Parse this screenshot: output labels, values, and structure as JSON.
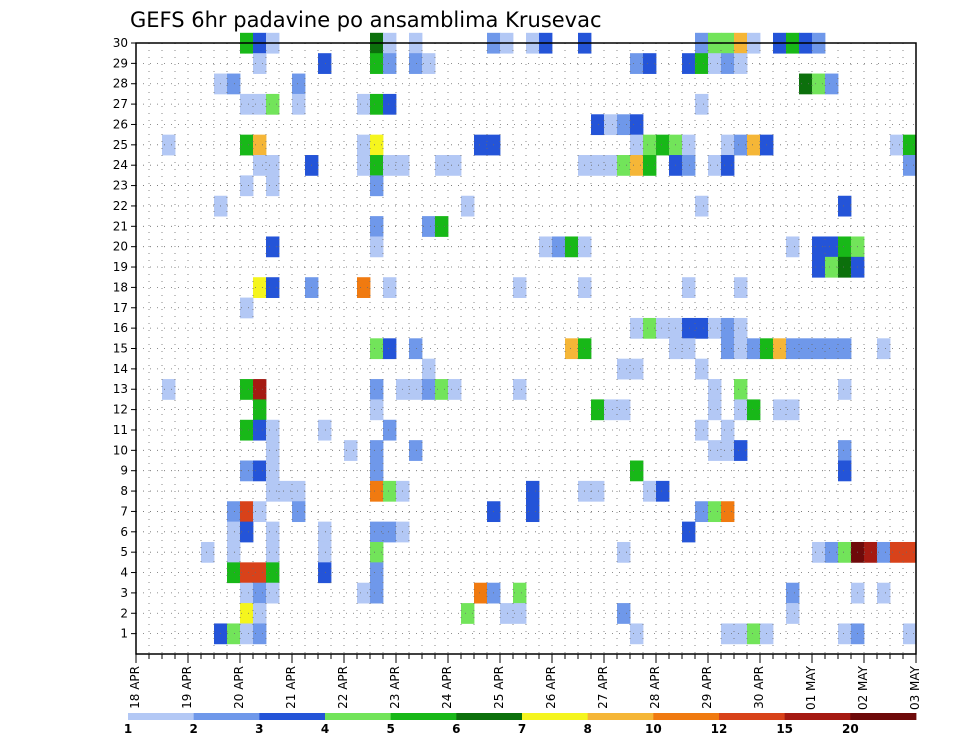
{
  "chart_data": {
    "type": "heatmap",
    "title": "GEFS 6hr padavine po ansamblima Krusevac",
    "xlabel": "",
    "ylabel": "",
    "x_tick_labels": [
      "18 APR",
      "19 APR",
      "20 APR",
      "21 APR",
      "22 APR",
      "23 APR",
      "24 APR",
      "25 APR",
      "26 APR",
      "27 APR",
      "28 APR",
      "29 APR",
      "30 APR",
      "01 MAY",
      "02 MAY",
      "03 MAY"
    ],
    "y_tick_labels": [
      "1",
      "2",
      "3",
      "4",
      "5",
      "6",
      "7",
      "8",
      "9",
      "10",
      "11",
      "12",
      "13",
      "14",
      "15",
      "16",
      "17",
      "18",
      "19",
      "20",
      "21",
      "22",
      "23",
      "24",
      "25",
      "26",
      "27",
      "28",
      "29",
      "30"
    ],
    "xlim": [
      0,
      60
    ],
    "ylim": [
      0,
      30
    ],
    "grid": true,
    "legend": "colorbar-bottom",
    "colorbar": {
      "levels": [
        1,
        2,
        3,
        4,
        5,
        6,
        7,
        8,
        10,
        12,
        15,
        20
      ],
      "colors": [
        "#b3c8f5",
        "#6f98ea",
        "#2454d8",
        "#72e45a",
        "#18b818",
        "#0c700c",
        "#f5f51e",
        "#f5b637",
        "#f07a10",
        "#d8421a",
        "#a51a12",
        "#6e0a0a"
      ]
    },
    "cells": [
      [
        8,
        30,
        4
      ],
      [
        9,
        30,
        2
      ],
      [
        10,
        30,
        0
      ],
      [
        18,
        30,
        5
      ],
      [
        19,
        30,
        0
      ],
      [
        21,
        30,
        0
      ],
      [
        27,
        30,
        1
      ],
      [
        28,
        30,
        0
      ],
      [
        30,
        30,
        0
      ],
      [
        31,
        30,
        2
      ],
      [
        34,
        30,
        2
      ],
      [
        43,
        30,
        1
      ],
      [
        44,
        30,
        3
      ],
      [
        45,
        30,
        3
      ],
      [
        46,
        30,
        7
      ],
      [
        47,
        30,
        0
      ],
      [
        49,
        30,
        2
      ],
      [
        50,
        30,
        4
      ],
      [
        51,
        30,
        2
      ],
      [
        52,
        30,
        1
      ],
      [
        9,
        29,
        0
      ],
      [
        14,
        29,
        2
      ],
      [
        18,
        29,
        4
      ],
      [
        19,
        29,
        1
      ],
      [
        21,
        29,
        1
      ],
      [
        22,
        29,
        0
      ],
      [
        38,
        29,
        1
      ],
      [
        39,
        29,
        2
      ],
      [
        42,
        29,
        2
      ],
      [
        43,
        29,
        4
      ],
      [
        44,
        29,
        0
      ],
      [
        45,
        29,
        1
      ],
      [
        46,
        29,
        0
      ],
      [
        6,
        28,
        0
      ],
      [
        7,
        28,
        1
      ],
      [
        12,
        28,
        1
      ],
      [
        51,
        28,
        5
      ],
      [
        52,
        28,
        3
      ],
      [
        53,
        28,
        1
      ],
      [
        8,
        27,
        0
      ],
      [
        9,
        27,
        0
      ],
      [
        10,
        27,
        3
      ],
      [
        12,
        27,
        0
      ],
      [
        17,
        27,
        0
      ],
      [
        18,
        27,
        4
      ],
      [
        19,
        27,
        2
      ],
      [
        43,
        27,
        0
      ],
      [
        35,
        26,
        2
      ],
      [
        36,
        26,
        0
      ],
      [
        37,
        26,
        1
      ],
      [
        38,
        26,
        2
      ],
      [
        2,
        25,
        0
      ],
      [
        8,
        25,
        4
      ],
      [
        9,
        25,
        7
      ],
      [
        17,
        25,
        0
      ],
      [
        18,
        25,
        6
      ],
      [
        26,
        25,
        2
      ],
      [
        27,
        25,
        2
      ],
      [
        38,
        25,
        0
      ],
      [
        39,
        25,
        3
      ],
      [
        40,
        25,
        4
      ],
      [
        41,
        25,
        3
      ],
      [
        42,
        25,
        0
      ],
      [
        45,
        25,
        0
      ],
      [
        46,
        25,
        1
      ],
      [
        47,
        25,
        7
      ],
      [
        48,
        25,
        2
      ],
      [
        58,
        25,
        0
      ],
      [
        59,
        25,
        4
      ],
      [
        9,
        24,
        0
      ],
      [
        10,
        24,
        0
      ],
      [
        13,
        24,
        2
      ],
      [
        17,
        24,
        0
      ],
      [
        18,
        24,
        4
      ],
      [
        19,
        24,
        0
      ],
      [
        20,
        24,
        0
      ],
      [
        23,
        24,
        0
      ],
      [
        24,
        24,
        0
      ],
      [
        34,
        24,
        0
      ],
      [
        35,
        24,
        0
      ],
      [
        36,
        24,
        0
      ],
      [
        37,
        24,
        3
      ],
      [
        38,
        24,
        7
      ],
      [
        39,
        24,
        4
      ],
      [
        41,
        24,
        2
      ],
      [
        42,
        24,
        1
      ],
      [
        44,
        24,
        0
      ],
      [
        45,
        24,
        2
      ],
      [
        59,
        24,
        1
      ],
      [
        8,
        23,
        0
      ],
      [
        10,
        23,
        0
      ],
      [
        18,
        23,
        1
      ],
      [
        6,
        22,
        0
      ],
      [
        25,
        22,
        0
      ],
      [
        43,
        22,
        0
      ],
      [
        54,
        22,
        2
      ],
      [
        18,
        21,
        1
      ],
      [
        22,
        21,
        1
      ],
      [
        23,
        21,
        4
      ],
      [
        10,
        20,
        2
      ],
      [
        18,
        20,
        0
      ],
      [
        31,
        20,
        0
      ],
      [
        32,
        20,
        1
      ],
      [
        33,
        20,
        4
      ],
      [
        34,
        20,
        0
      ],
      [
        50,
        20,
        0
      ],
      [
        52,
        20,
        2
      ],
      [
        53,
        20,
        2
      ],
      [
        54,
        20,
        4
      ],
      [
        55,
        20,
        3
      ],
      [
        52,
        19,
        2
      ],
      [
        53,
        19,
        3
      ],
      [
        54,
        19,
        5
      ],
      [
        55,
        19,
        2
      ],
      [
        9,
        18,
        6
      ],
      [
        10,
        18,
        2
      ],
      [
        13,
        18,
        1
      ],
      [
        17,
        18,
        8
      ],
      [
        19,
        18,
        0
      ],
      [
        29,
        18,
        0
      ],
      [
        34,
        18,
        0
      ],
      [
        42,
        18,
        0
      ],
      [
        46,
        18,
        0
      ],
      [
        8,
        17,
        0
      ],
      [
        38,
        16,
        0
      ],
      [
        39,
        16,
        3
      ],
      [
        40,
        16,
        0
      ],
      [
        41,
        16,
        0
      ],
      [
        42,
        16,
        2
      ],
      [
        43,
        16,
        2
      ],
      [
        44,
        16,
        0
      ],
      [
        45,
        16,
        1
      ],
      [
        46,
        16,
        0
      ],
      [
        18,
        15,
        3
      ],
      [
        19,
        15,
        2
      ],
      [
        21,
        15,
        1
      ],
      [
        33,
        15,
        7
      ],
      [
        34,
        15,
        4
      ],
      [
        41,
        15,
        0
      ],
      [
        42,
        15,
        0
      ],
      [
        45,
        15,
        1
      ],
      [
        46,
        15,
        0
      ],
      [
        47,
        15,
        1
      ],
      [
        48,
        15,
        4
      ],
      [
        49,
        15,
        7
      ],
      [
        50,
        15,
        1
      ],
      [
        51,
        15,
        1
      ],
      [
        52,
        15,
        1
      ],
      [
        53,
        15,
        1
      ],
      [
        54,
        15,
        1
      ],
      [
        57,
        15,
        0
      ],
      [
        22,
        14,
        0
      ],
      [
        37,
        14,
        0
      ],
      [
        38,
        14,
        0
      ],
      [
        43,
        14,
        0
      ],
      [
        2,
        13,
        0
      ],
      [
        8,
        13,
        4
      ],
      [
        9,
        13,
        10
      ],
      [
        18,
        13,
        1
      ],
      [
        20,
        13,
        0
      ],
      [
        21,
        13,
        0
      ],
      [
        22,
        13,
        1
      ],
      [
        23,
        13,
        3
      ],
      [
        24,
        13,
        0
      ],
      [
        29,
        13,
        0
      ],
      [
        44,
        13,
        0
      ],
      [
        46,
        13,
        3
      ],
      [
        54,
        13,
        0
      ],
      [
        9,
        12,
        4
      ],
      [
        18,
        12,
        0
      ],
      [
        35,
        12,
        4
      ],
      [
        36,
        12,
        0
      ],
      [
        37,
        12,
        0
      ],
      [
        44,
        12,
        0
      ],
      [
        46,
        12,
        0
      ],
      [
        47,
        12,
        4
      ],
      [
        49,
        12,
        0
      ],
      [
        50,
        12,
        0
      ],
      [
        8,
        11,
        4
      ],
      [
        9,
        11,
        2
      ],
      [
        10,
        11,
        0
      ],
      [
        14,
        11,
        0
      ],
      [
        19,
        11,
        1
      ],
      [
        43,
        11,
        0
      ],
      [
        45,
        11,
        0
      ],
      [
        10,
        10,
        0
      ],
      [
        16,
        10,
        0
      ],
      [
        18,
        10,
        1
      ],
      [
        21,
        10,
        1
      ],
      [
        44,
        10,
        0
      ],
      [
        45,
        10,
        0
      ],
      [
        46,
        10,
        2
      ],
      [
        54,
        10,
        1
      ],
      [
        8,
        9,
        1
      ],
      [
        9,
        9,
        2
      ],
      [
        10,
        9,
        0
      ],
      [
        18,
        9,
        1
      ],
      [
        38,
        9,
        4
      ],
      [
        54,
        9,
        2
      ],
      [
        10,
        8,
        0
      ],
      [
        11,
        8,
        0
      ],
      [
        12,
        8,
        0
      ],
      [
        18,
        8,
        8
      ],
      [
        19,
        8,
        3
      ],
      [
        20,
        8,
        0
      ],
      [
        30,
        8,
        2
      ],
      [
        34,
        8,
        0
      ],
      [
        35,
        8,
        0
      ],
      [
        39,
        8,
        0
      ],
      [
        40,
        8,
        2
      ],
      [
        7,
        7,
        1
      ],
      [
        8,
        7,
        9
      ],
      [
        9,
        7,
        0
      ],
      [
        12,
        7,
        1
      ],
      [
        27,
        7,
        2
      ],
      [
        30,
        7,
        2
      ],
      [
        43,
        7,
        1
      ],
      [
        44,
        7,
        3
      ],
      [
        45,
        7,
        8
      ],
      [
        7,
        6,
        0
      ],
      [
        8,
        6,
        2
      ],
      [
        10,
        6,
        0
      ],
      [
        14,
        6,
        0
      ],
      [
        18,
        6,
        1
      ],
      [
        19,
        6,
        1
      ],
      [
        20,
        6,
        0
      ],
      [
        42,
        6,
        2
      ],
      [
        5,
        5,
        0
      ],
      [
        7,
        5,
        0
      ],
      [
        10,
        5,
        0
      ],
      [
        14,
        5,
        0
      ],
      [
        18,
        5,
        3
      ],
      [
        37,
        5,
        0
      ],
      [
        52,
        5,
        0
      ],
      [
        53,
        5,
        1
      ],
      [
        54,
        5,
        3
      ],
      [
        55,
        5,
        11
      ],
      [
        56,
        5,
        10
      ],
      [
        57,
        5,
        1
      ],
      [
        58,
        5,
        9
      ],
      [
        59,
        5,
        9
      ],
      [
        7,
        4,
        4
      ],
      [
        8,
        4,
        9
      ],
      [
        9,
        4,
        9
      ],
      [
        10,
        4,
        4
      ],
      [
        14,
        4,
        2
      ],
      [
        18,
        4,
        1
      ],
      [
        8,
        3,
        0
      ],
      [
        9,
        3,
        1
      ],
      [
        10,
        3,
        0
      ],
      [
        17,
        3,
        0
      ],
      [
        18,
        3,
        1
      ],
      [
        26,
        3,
        8
      ],
      [
        27,
        3,
        1
      ],
      [
        29,
        3,
        3
      ],
      [
        50,
        3,
        1
      ],
      [
        55,
        3,
        0
      ],
      [
        57,
        3,
        0
      ],
      [
        8,
        2,
        6
      ],
      [
        9,
        2,
        0
      ],
      [
        25,
        2,
        3
      ],
      [
        28,
        2,
        0
      ],
      [
        29,
        2,
        0
      ],
      [
        37,
        2,
        1
      ],
      [
        50,
        2,
        0
      ],
      [
        6,
        1,
        2
      ],
      [
        7,
        1,
        3
      ],
      [
        8,
        1,
        0
      ],
      [
        9,
        1,
        1
      ],
      [
        38,
        1,
        0
      ],
      [
        45,
        1,
        0
      ],
      [
        46,
        1,
        0
      ],
      [
        47,
        1,
        3
      ],
      [
        48,
        1,
        0
      ],
      [
        54,
        1,
        0
      ],
      [
        55,
        1,
        1
      ],
      [
        59,
        1,
        0
      ]
    ]
  }
}
